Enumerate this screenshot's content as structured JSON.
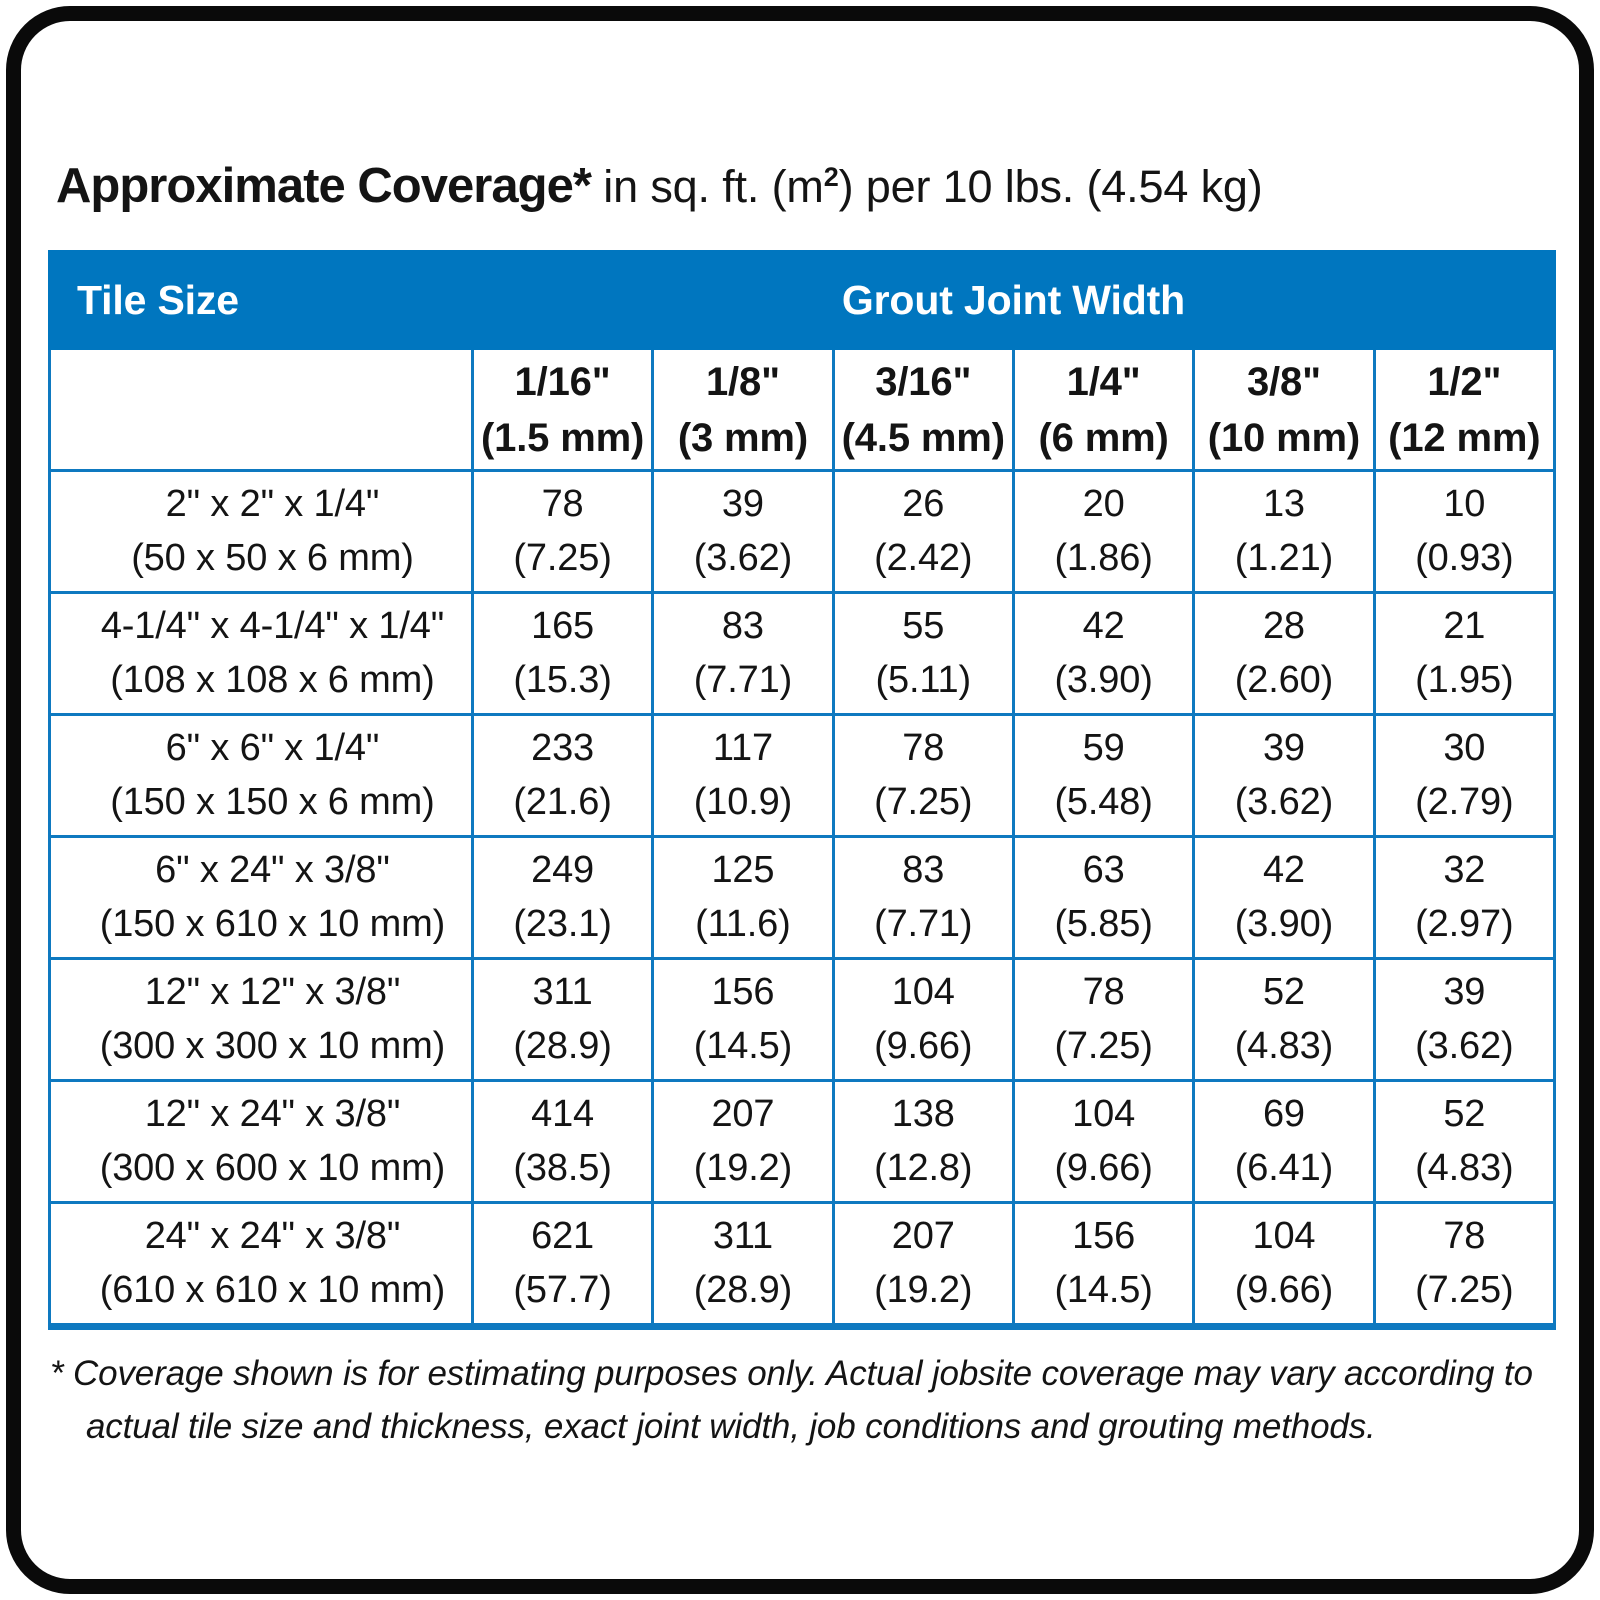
{
  "title": {
    "emphasis": "Approximate Coverage*",
    "unit_pre": " in sq. ft. (m",
    "unit_sup": "2",
    "unit_post": ") per 10 lbs. (4.54 kg)"
  },
  "accent_color": "#0076BF",
  "table": {
    "tile_size_label": "Tile Size",
    "grout_joint_width_label": "Grout Joint Width",
    "columns": [
      {
        "inches": "1/16\"",
        "mm": "(1.5 mm)"
      },
      {
        "inches": "1/8\"",
        "mm": "(3 mm)"
      },
      {
        "inches": "3/16\"",
        "mm": "(4.5 mm)"
      },
      {
        "inches": "1/4\"",
        "mm": "(6 mm)"
      },
      {
        "inches": "3/8\"",
        "mm": "(10 mm)"
      },
      {
        "inches": "1/2\"",
        "mm": "(12 mm)"
      }
    ],
    "rows": [
      {
        "tile_in": "2\" x 2\" x 1/4\"",
        "tile_mm": "(50 x 50 x 6 mm)",
        "values": [
          {
            "sqft": "78",
            "m2": "(7.25)"
          },
          {
            "sqft": "39",
            "m2": "(3.62)"
          },
          {
            "sqft": "26",
            "m2": "(2.42)"
          },
          {
            "sqft": "20",
            "m2": "(1.86)"
          },
          {
            "sqft": "13",
            "m2": "(1.21)"
          },
          {
            "sqft": "10",
            "m2": "(0.93)"
          }
        ]
      },
      {
        "tile_in": "4-1/4\" x 4-1/4\" x 1/4\"",
        "tile_mm": "(108 x 108 x 6 mm)",
        "values": [
          {
            "sqft": "165",
            "m2": "(15.3)"
          },
          {
            "sqft": "83",
            "m2": "(7.71)"
          },
          {
            "sqft": "55",
            "m2": "(5.11)"
          },
          {
            "sqft": "42",
            "m2": "(3.90)"
          },
          {
            "sqft": "28",
            "m2": "(2.60)"
          },
          {
            "sqft": "21",
            "m2": "(1.95)"
          }
        ]
      },
      {
        "tile_in": "6\" x 6\" x 1/4\"",
        "tile_mm": "(150 x 150 x 6 mm)",
        "values": [
          {
            "sqft": "233",
            "m2": "(21.6)"
          },
          {
            "sqft": "117",
            "m2": "(10.9)"
          },
          {
            "sqft": "78",
            "m2": "(7.25)"
          },
          {
            "sqft": "59",
            "m2": "(5.48)"
          },
          {
            "sqft": "39",
            "m2": "(3.62)"
          },
          {
            "sqft": "30",
            "m2": "(2.79)"
          }
        ]
      },
      {
        "tile_in": "6\" x 24\" x 3/8\"",
        "tile_mm": "(150 x 610 x 10 mm)",
        "values": [
          {
            "sqft": "249",
            "m2": "(23.1)"
          },
          {
            "sqft": "125",
            "m2": "(11.6)"
          },
          {
            "sqft": "83",
            "m2": "(7.71)"
          },
          {
            "sqft": "63",
            "m2": "(5.85)"
          },
          {
            "sqft": "42",
            "m2": "(3.90)"
          },
          {
            "sqft": "32",
            "m2": "(2.97)"
          }
        ]
      },
      {
        "tile_in": "12\" x 12\" x 3/8\"",
        "tile_mm": "(300 x 300 x 10 mm)",
        "values": [
          {
            "sqft": "311",
            "m2": "(28.9)"
          },
          {
            "sqft": "156",
            "m2": "(14.5)"
          },
          {
            "sqft": "104",
            "m2": "(9.66)"
          },
          {
            "sqft": "78",
            "m2": "(7.25)"
          },
          {
            "sqft": "52",
            "m2": "(4.83)"
          },
          {
            "sqft": "39",
            "m2": "(3.62)"
          }
        ]
      },
      {
        "tile_in": "12\" x 24\" x 3/8\"",
        "tile_mm": "(300 x 600 x 10 mm)",
        "values": [
          {
            "sqft": "414",
            "m2": "(38.5)"
          },
          {
            "sqft": "207",
            "m2": "(19.2)"
          },
          {
            "sqft": "138",
            "m2": "(12.8)"
          },
          {
            "sqft": "104",
            "m2": "(9.66)"
          },
          {
            "sqft": "69",
            "m2": "(6.41)"
          },
          {
            "sqft": "52",
            "m2": "(4.83)"
          }
        ]
      },
      {
        "tile_in": "24\" x 24\" x 3/8\"",
        "tile_mm": "(610 x 610 x 10 mm)",
        "values": [
          {
            "sqft": "621",
            "m2": "(57.7)"
          },
          {
            "sqft": "311",
            "m2": "(28.9)"
          },
          {
            "sqft": "207",
            "m2": "(19.2)"
          },
          {
            "sqft": "156",
            "m2": "(14.5)"
          },
          {
            "sqft": "104",
            "m2": "(9.66)"
          },
          {
            "sqft": "78",
            "m2": "(7.25)"
          }
        ]
      }
    ]
  },
  "footnote": {
    "marker": "*",
    "text": "Coverage shown is for estimating purposes only. Actual jobsite coverage may vary according to actual tile size and thickness, exact joint width, job conditions and grouting methods."
  }
}
